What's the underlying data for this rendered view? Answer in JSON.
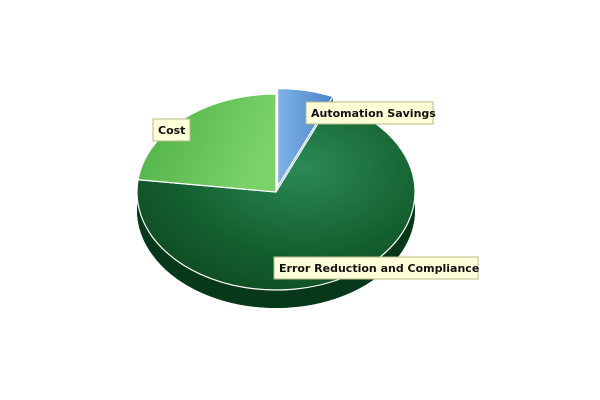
{
  "chart_data": {
    "type": "pie",
    "title": "",
    "slices": [
      {
        "label": "Automation Savings",
        "value": 6.5,
        "color": "#5b9bd5",
        "exploded": true
      },
      {
        "label": "Error Reduction and Compliance",
        "value": 70.5,
        "color": "#1a6a3a",
        "exploded": false
      },
      {
        "label": "Cost",
        "value": 23,
        "color": "#62c35a",
        "exploded": false
      }
    ],
    "legend": "none",
    "style": "3d"
  }
}
